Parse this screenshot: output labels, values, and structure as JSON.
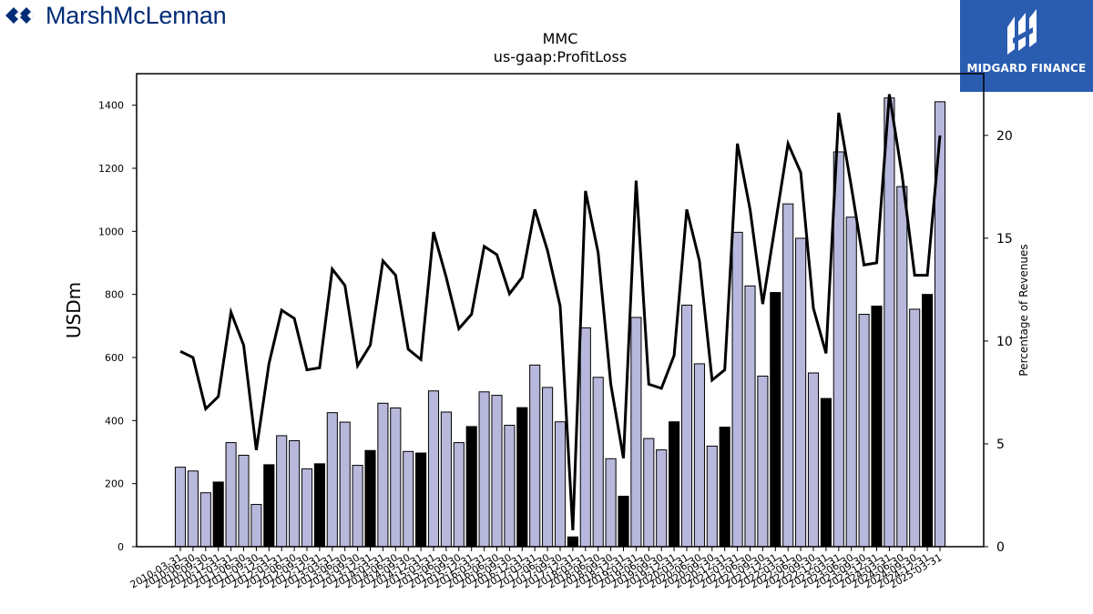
{
  "branding": {
    "left_logo_text": "MarshMcLennan",
    "right_logo_text": "MIDGARD FINANCE",
    "left_logo_color": "#002c77",
    "right_logo_bg": "#2a5db0"
  },
  "chart_data": {
    "type": "bar",
    "title": "MMC",
    "subtitle": "us-gaap:ProfitLoss",
    "ylabel": "USDm",
    "y2label": "Percentage of Revenues",
    "ylim": [
      0,
      1500
    ],
    "y2lim": [
      0,
      23
    ],
    "yticks": [
      0,
      200,
      400,
      600,
      800,
      1000,
      1200,
      1400
    ],
    "y2ticks": [
      0,
      5,
      10,
      15,
      20
    ],
    "bar_color": "#b8b8dc",
    "q4_bar_color": "#000000",
    "line_color": "#000000",
    "x_tick_labels": [
      "2010-03-31",
      "2010-06-30",
      "2010-09-30",
      "2010-12-31",
      "2011-03-31",
      "2011-06-30",
      "2011-09-30",
      "2011-12-31",
      "2012-03-31",
      "2012-06-30",
      "2012-09-30",
      "2012-12-31",
      "2013-03-31",
      "2013-06-30",
      "2013-09-30",
      "2013-12-31",
      "2014-03-31",
      "2014-06-30",
      "2014-09-30",
      "2014-12-31",
      "2015-03-31",
      "2015-06-30",
      "2015-09-30",
      "2015-12-31",
      "2016-03-31",
      "2016-06-30",
      "2016-09-30",
      "2016-12-31",
      "2017-03-31",
      "2017-06-30",
      "2017-09-30",
      "2017-12-31",
      "2018-03-31",
      "2018-06-30",
      "2018-09-30",
      "2018-12-31",
      "2019-03-31",
      "2019-06-30",
      "2019-09-30",
      "2019-12-31",
      "2020-03-31",
      "2020-06-30",
      "2020-09-30",
      "2020-12-31",
      "2021-03-31",
      "2021-06-30",
      "2021-09-30",
      "2021-12-31",
      "2022-03-31",
      "2022-06-30",
      "2022-09-30",
      "2022-12-31",
      "2023-03-31",
      "2023-06-30",
      "2023-09-30",
      "2023-12-31",
      "2024-03-31",
      "2024-06-30",
      "2024-09-30",
      "2024-12-31",
      "2025-03-31"
    ],
    "series": [
      {
        "name": "ProfitLoss (USDm)",
        "axis": "left",
        "values": [
          252,
          240,
          171,
          205,
          330,
          290,
          134,
          260,
          352,
          336,
          247,
          263,
          425,
          395,
          258,
          305,
          455,
          440,
          302,
          297,
          494,
          427,
          330,
          381,
          491,
          480,
          385,
          441,
          576,
          505,
          396,
          31,
          694,
          537,
          279,
          160,
          727,
          343,
          307,
          396,
          766,
          580,
          319,
          379,
          997,
          827,
          541,
          806,
          1087,
          978,
          551,
          470,
          1252,
          1045,
          737,
          763,
          1423,
          1142,
          753,
          800,
          1411
        ]
      },
      {
        "name": "Percentage of Revenues",
        "axis": "right",
        "values": [
          9.5,
          9.2,
          6.7,
          7.3,
          11.4,
          9.8,
          4.7,
          8.9,
          11.5,
          11.1,
          8.6,
          8.7,
          13.5,
          12.7,
          8.8,
          9.8,
          13.9,
          13.2,
          9.6,
          9.1,
          15.3,
          13.1,
          10.6,
          11.3,
          14.6,
          14.2,
          12.3,
          13.1,
          16.4,
          14.4,
          11.7,
          0.8,
          17.3,
          14.3,
          7.9,
          4.3,
          17.8,
          7.9,
          7.7,
          9.3,
          16.4,
          13.9,
          8.1,
          8.6,
          19.6,
          16.4,
          11.8,
          15.7,
          19.6,
          18.2,
          11.6,
          9.4,
          21.1,
          17.5,
          13.7,
          13.8,
          22.0,
          18.1,
          13.2,
          13.2,
          20.0
        ]
      }
    ]
  }
}
